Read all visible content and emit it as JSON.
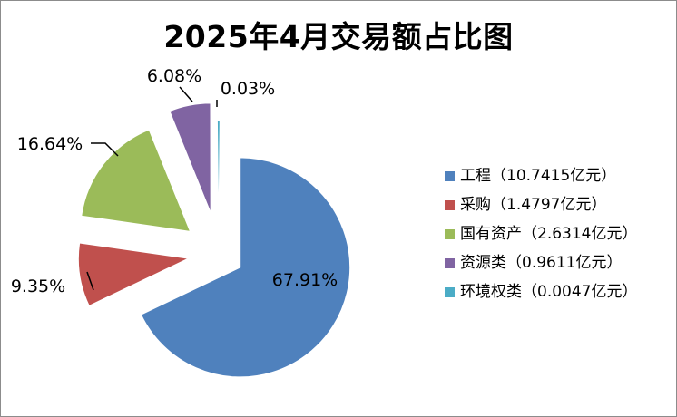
{
  "chart_data": {
    "type": "pie",
    "title": "2025年4月交易额占比图",
    "exploded": true,
    "legend_position": "right",
    "slices": [
      {
        "label": "工程",
        "legend": "工程（10.7415亿元）",
        "value": 10.7415,
        "percent_label": "67.91%",
        "color": "#4F81BD"
      },
      {
        "label": "采购",
        "legend": "采购（1.4797亿元）",
        "value": 1.4797,
        "percent_label": "9.35%",
        "color": "#C0504D"
      },
      {
        "label": "国有资产",
        "legend": "国有资产（2.6314亿元）",
        "value": 2.6314,
        "percent_label": "16.64%",
        "color": "#9BBB59"
      },
      {
        "label": "资源类",
        "legend": "资源类（0.9611亿元）",
        "value": 0.9611,
        "percent_label": "6.08%",
        "color": "#8064A2"
      },
      {
        "label": "环境权类",
        "legend": "环境权类（0.0047亿元）",
        "value": 0.0047,
        "percent_label": "0.03%",
        "color": "#4BACC6"
      }
    ]
  }
}
